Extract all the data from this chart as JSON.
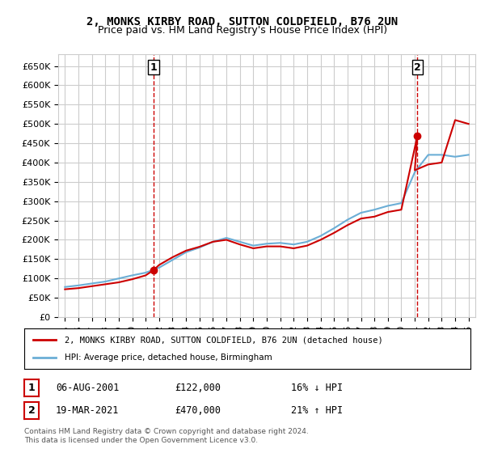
{
  "title": "2, MONKS KIRBY ROAD, SUTTON COLDFIELD, B76 2UN",
  "subtitle": "Price paid vs. HM Land Registry's House Price Index (HPI)",
  "legend_line1": "2, MONKS KIRBY ROAD, SUTTON COLDFIELD, B76 2UN (detached house)",
  "legend_line2": "HPI: Average price, detached house, Birmingham",
  "annotation1_label": "1",
  "annotation1_date": "06-AUG-2001",
  "annotation1_price": "£122,000",
  "annotation1_hpi": "16% ↓ HPI",
  "annotation2_label": "2",
  "annotation2_date": "19-MAR-2021",
  "annotation2_price": "£470,000",
  "annotation2_hpi": "21% ↑ HPI",
  "footnote": "Contains HM Land Registry data © Crown copyright and database right 2024.\nThis data is licensed under the Open Government Licence v3.0.",
  "hpi_color": "#6baed6",
  "price_color": "#cc0000",
  "vline_color": "#cc0000",
  "background_color": "#ffffff",
  "grid_color": "#cccccc",
  "ylim": [
    0,
    680000
  ],
  "yticks": [
    0,
    50000,
    100000,
    150000,
    200000,
    250000,
    300000,
    350000,
    400000,
    450000,
    500000,
    550000,
    600000,
    650000
  ],
  "xlim_start": 1994.5,
  "xlim_end": 2025.5,
  "sale1_x": 2001.6,
  "sale1_y": 122000,
  "sale2_x": 2021.2,
  "sale2_y": 470000,
  "hpi_years": [
    1995,
    1996,
    1997,
    1998,
    1999,
    2000,
    2001,
    2002,
    2003,
    2004,
    2005,
    2006,
    2007,
    2008,
    2009,
    2010,
    2011,
    2012,
    2013,
    2014,
    2015,
    2016,
    2017,
    2018,
    2019,
    2020,
    2021,
    2022,
    2023,
    2024,
    2025
  ],
  "hpi_values": [
    78000,
    82000,
    87000,
    92000,
    100000,
    108000,
    115000,
    128000,
    148000,
    168000,
    180000,
    195000,
    205000,
    195000,
    185000,
    190000,
    192000,
    188000,
    195000,
    210000,
    230000,
    252000,
    270000,
    278000,
    288000,
    295000,
    375000,
    420000,
    420000,
    415000,
    420000
  ],
  "price_years_smooth": [
    1995,
    1996,
    1997,
    1998,
    1999,
    2000,
    2001,
    2001.6,
    2002,
    2003,
    2004,
    2005,
    2006,
    2007,
    2008,
    2009,
    2010,
    2011,
    2012,
    2013,
    2014,
    2015,
    2016,
    2017,
    2018,
    2019,
    2020,
    2021.2,
    2021,
    2022,
    2023,
    2024,
    2025
  ],
  "price_values_smooth": [
    72000,
    75000,
    80000,
    85000,
    90000,
    98000,
    108000,
    122000,
    135000,
    155000,
    172000,
    182000,
    195000,
    200000,
    188000,
    178000,
    183000,
    183000,
    178000,
    185000,
    200000,
    218000,
    238000,
    255000,
    260000,
    272000,
    278000,
    470000,
    380000,
    395000,
    400000,
    510000,
    500000
  ]
}
